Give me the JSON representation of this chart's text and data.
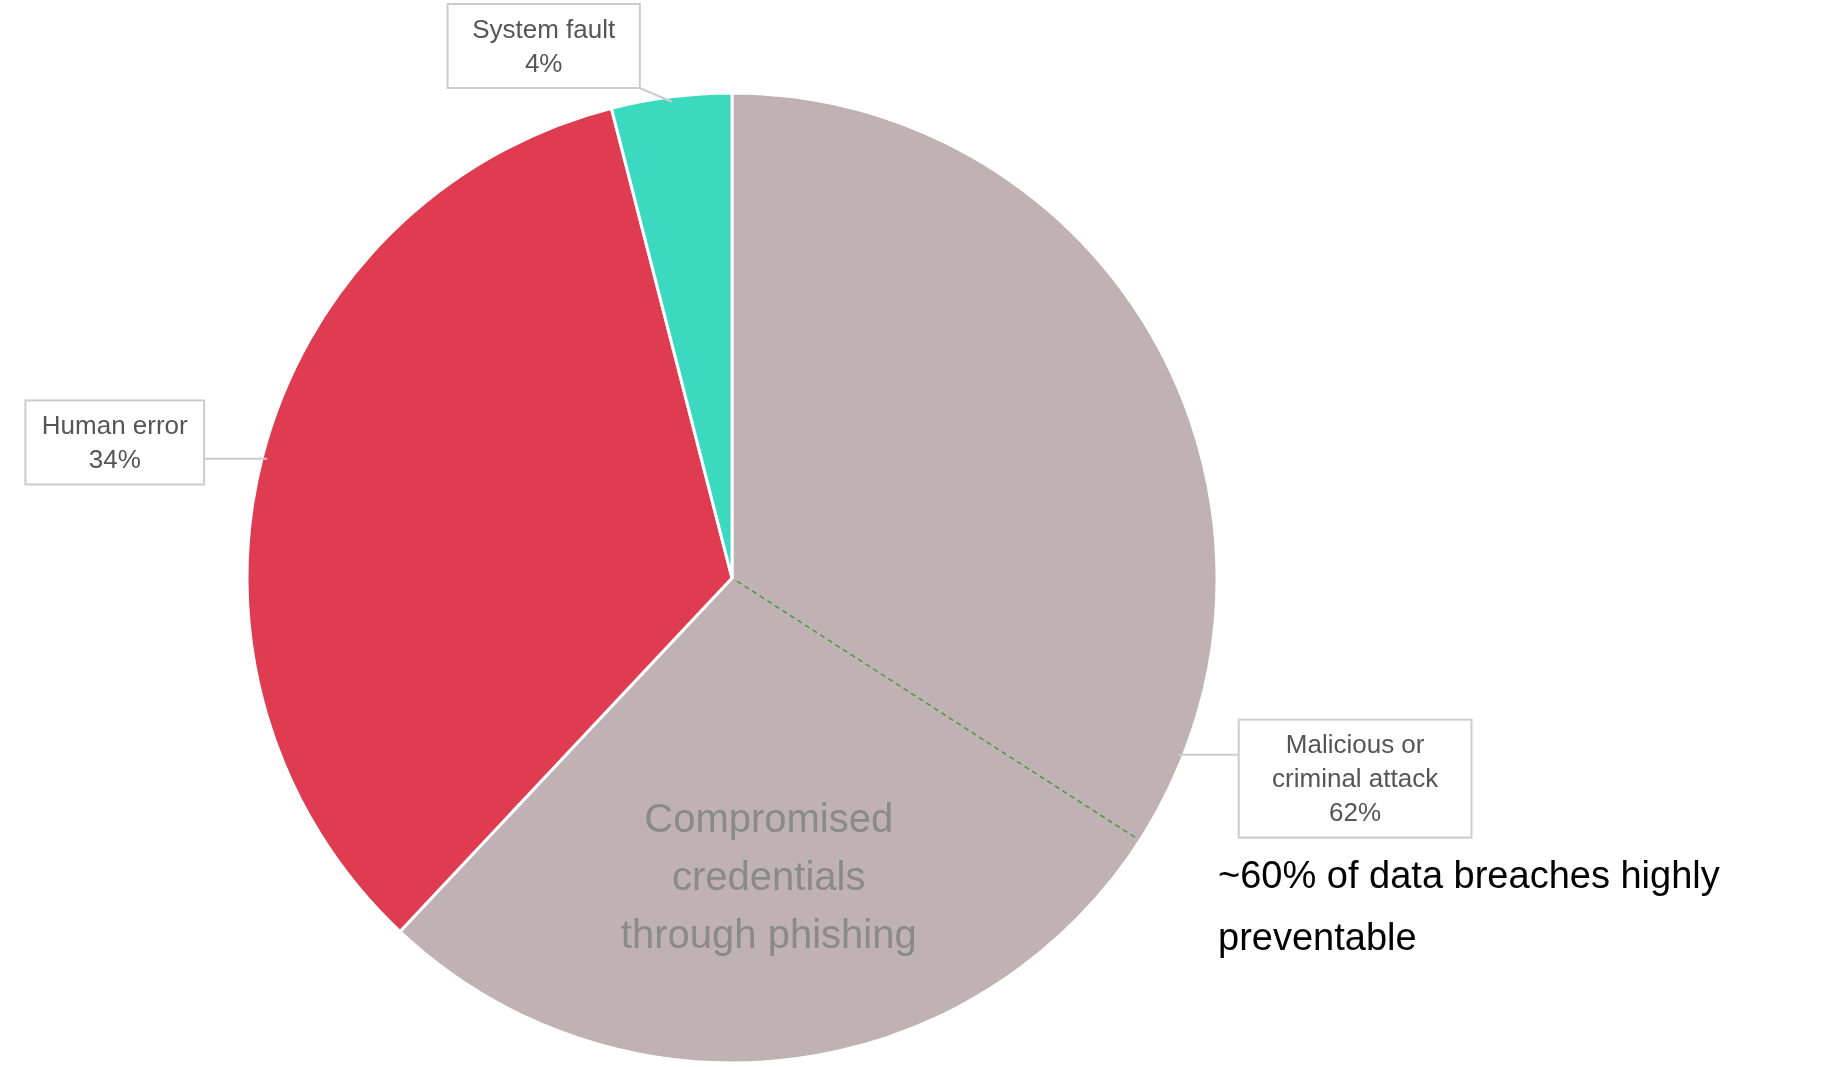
{
  "chart_data": {
    "type": "pie",
    "categories": [
      "Malicious or criminal attack",
      "Human error",
      "System fault"
    ],
    "values": [
      62,
      34,
      4
    ],
    "colors": [
      "#c0b1b4",
      "#df3c52",
      "#3cd9c1"
    ],
    "value_labels": [
      "62%",
      "34%",
      "4%"
    ],
    "annotations": [
      {
        "text": "Compromised credentials through phishing",
        "x": "Malicious or criminal attack"
      },
      "~60% of data breaches highly preventable"
    ]
  }
}
